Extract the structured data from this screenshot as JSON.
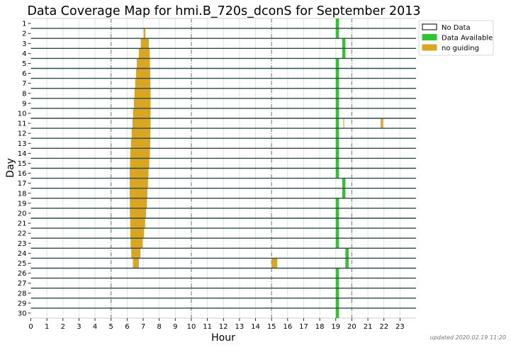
{
  "chart_data": {
    "type": "bar",
    "subtype": "coverage-map",
    "title": "Data Coverage Map for hmi.B_720s_dconS for September 2013",
    "xlabel": "Hour",
    "ylabel": "Day",
    "xlim": [
      0,
      24
    ],
    "x_ticks": [
      0,
      1,
      2,
      3,
      4,
      5,
      6,
      7,
      8,
      9,
      10,
      11,
      12,
      13,
      14,
      15,
      16,
      17,
      18,
      19,
      20,
      21,
      22,
      23
    ],
    "days": [
      1,
      2,
      3,
      4,
      5,
      6,
      7,
      8,
      9,
      10,
      11,
      12,
      13,
      14,
      15,
      16,
      17,
      18,
      19,
      20,
      21,
      22,
      23,
      24,
      25,
      26,
      27,
      28,
      29,
      30
    ],
    "major_gridlines_hours": [
      5,
      10,
      15,
      20
    ],
    "legend": {
      "placement": "outside-top-right",
      "entries": [
        {
          "label": "No Data",
          "color": "#ffffff"
        },
        {
          "label": "Data Available",
          "color": "#2ec62e"
        },
        {
          "label": "no guiding",
          "color": "#daa520"
        }
      ]
    },
    "series": [
      {
        "name": "Data Available",
        "color": "#2ec62e",
        "segments": [
          [
            1,
            19.0,
            19.2
          ],
          [
            2,
            19.0,
            19.2
          ],
          [
            3,
            19.4,
            19.6
          ],
          [
            4,
            19.4,
            19.6
          ],
          [
            5,
            19.0,
            19.2
          ],
          [
            6,
            19.0,
            19.2
          ],
          [
            7,
            19.0,
            19.2
          ],
          [
            8,
            19.0,
            19.2
          ],
          [
            9,
            19.0,
            19.2
          ],
          [
            10,
            19.0,
            19.2
          ],
          [
            11,
            19.0,
            19.2
          ],
          [
            12,
            19.0,
            19.2
          ],
          [
            13,
            19.0,
            19.2
          ],
          [
            14,
            19.0,
            19.2
          ],
          [
            15,
            19.0,
            19.2
          ],
          [
            16,
            19.0,
            19.2
          ],
          [
            17,
            19.4,
            19.6
          ],
          [
            18,
            19.4,
            19.6
          ],
          [
            19,
            19.0,
            19.2
          ],
          [
            20,
            19.0,
            19.2
          ],
          [
            21,
            19.0,
            19.2
          ],
          [
            22,
            19.0,
            19.2
          ],
          [
            23,
            19.0,
            19.2
          ],
          [
            24,
            19.6,
            19.8
          ],
          [
            25,
            19.6,
            19.8
          ],
          [
            26,
            19.0,
            19.2
          ],
          [
            27,
            19.0,
            19.2
          ],
          [
            28,
            19.0,
            19.2
          ],
          [
            29,
            19.0,
            19.2
          ],
          [
            30,
            19.0,
            19.2
          ]
        ]
      },
      {
        "name": "no guiding",
        "color": "#daa520",
        "segments": [
          [
            2,
            7.03,
            7.13
          ],
          [
            3,
            6.85,
            7.35
          ],
          [
            4,
            6.73,
            7.4
          ],
          [
            5,
            6.6,
            7.42
          ],
          [
            6,
            6.56,
            7.44
          ],
          [
            7,
            6.5,
            7.45
          ],
          [
            8,
            6.46,
            7.46
          ],
          [
            9,
            6.42,
            7.46
          ],
          [
            10,
            6.37,
            7.46
          ],
          [
            11,
            6.33,
            7.46
          ],
          [
            11,
            19.47,
            19.52
          ],
          [
            11,
            21.8,
            21.95
          ],
          [
            12,
            6.28,
            7.45
          ],
          [
            13,
            6.24,
            7.44
          ],
          [
            14,
            6.2,
            7.42
          ],
          [
            15,
            6.18,
            7.38
          ],
          [
            16,
            6.16,
            7.33
          ],
          [
            17,
            6.16,
            7.3
          ],
          [
            18,
            6.16,
            7.26
          ],
          [
            19,
            6.17,
            7.23
          ],
          [
            20,
            6.17,
            7.18
          ],
          [
            21,
            6.19,
            7.12
          ],
          [
            22,
            6.2,
            7.05
          ],
          [
            23,
            6.22,
            6.96
          ],
          [
            24,
            6.26,
            6.83
          ],
          [
            25,
            6.36,
            6.73
          ],
          [
            25,
            15.0,
            15.35
          ]
        ]
      }
    ]
  },
  "footer": {
    "updated": "updated 2020.02.19 11:20"
  }
}
